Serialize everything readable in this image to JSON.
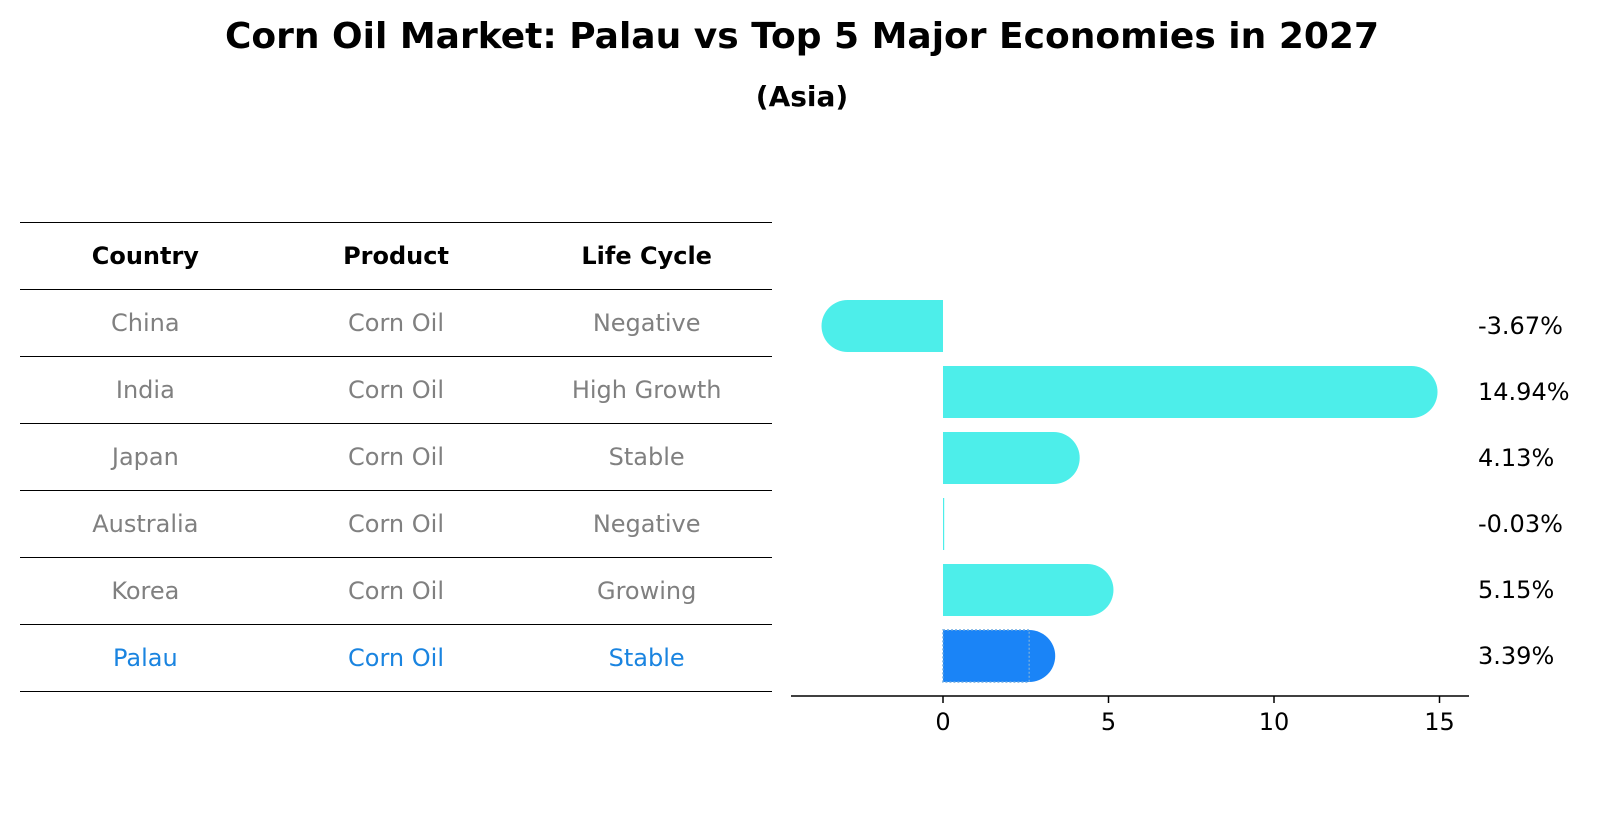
{
  "title": "Corn Oil Market: Palau vs Top 5 Major Economies in 2027",
  "subtitle": "(Asia)",
  "table": {
    "headers": [
      "Country",
      "Product",
      "Life Cycle"
    ],
    "rows": [
      {
        "country": "China",
        "product": "Corn Oil",
        "life_cycle": "Negative"
      },
      {
        "country": "India",
        "product": "Corn Oil",
        "life_cycle": "High Growth"
      },
      {
        "country": "Japan",
        "product": "Corn Oil",
        "life_cycle": "Stable"
      },
      {
        "country": "Australia",
        "product": "Corn Oil",
        "life_cycle": "Negative"
      },
      {
        "country": "Korea",
        "product": "Corn Oil",
        "life_cycle": "Growing"
      },
      {
        "country": "Palau",
        "product": "Corn Oil",
        "life_cycle": "Stable"
      }
    ]
  },
  "chart_data": {
    "type": "bar",
    "orientation": "horizontal",
    "categories": [
      "China",
      "India",
      "Japan",
      "Australia",
      "Korea",
      "Palau"
    ],
    "values": [
      -3.67,
      14.94,
      4.13,
      -0.03,
      5.15,
      3.39
    ],
    "value_labels": [
      "-3.67%",
      "14.94%",
      "4.13%",
      "-0.03%",
      "5.15%",
      "3.39%"
    ],
    "highlight": "Palau",
    "xticks": [
      0,
      5,
      10,
      15
    ],
    "xlim": [
      -4.6,
      16
    ],
    "colors": {
      "default": "#4deeea",
      "highlight": "#1a84f7"
    }
  }
}
